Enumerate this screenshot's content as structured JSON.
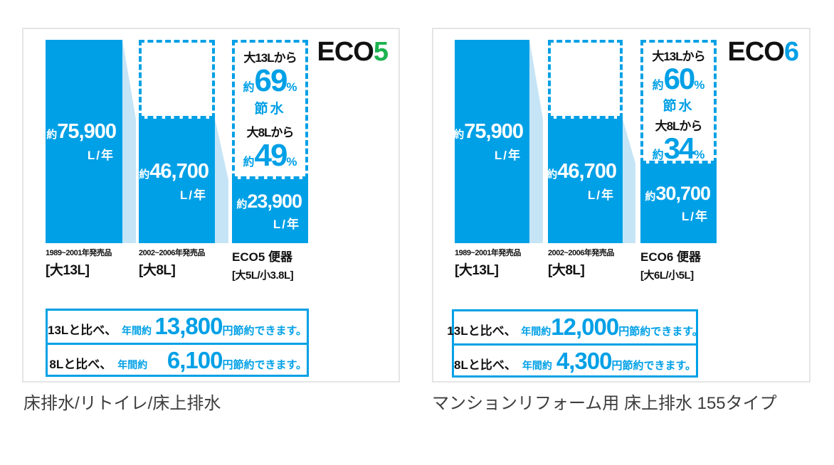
{
  "colors": {
    "bar_blue": "#00a0e6",
    "light_blue": "#c5e5f6",
    "eco5_digit_green": "#1cb24f",
    "eco6_digit_blue": "#00a0e6",
    "caption_gray": "#3d3d3d"
  },
  "panels": [
    {
      "logo": {
        "text": "ECO",
        "digit": "5",
        "digit_color": "#1cb24f"
      },
      "bars": [
        {
          "approx": "約",
          "value": "75,900",
          "unit": "L/年",
          "label1": "1989~2001年発売品",
          "label2": "[大13L]"
        },
        {
          "approx": "約",
          "value": "46,700",
          "unit": "L/年",
          "label1": "2002~2006年発売品",
          "label2": "[大8L]"
        },
        {
          "approx": "約",
          "value": "23,900",
          "unit": "L/年",
          "label1": "ECO5 便器",
          "label2": "[大5L/小3.8L]"
        }
      ],
      "savings": [
        {
          "from": "大13Lから",
          "approx": "約",
          "percent": "69",
          "mark": "%",
          "note": "節水"
        },
        {
          "from": "大8Lから",
          "approx": "約",
          "percent": "49",
          "mark": "%",
          "note": "節水"
        }
      ],
      "cost": [
        {
          "compare": "13Lと比べ、",
          "prefix": "年間約",
          "amount": "13,800",
          "suffix": "円節約できます。"
        },
        {
          "compare": "8Lと比べ、",
          "prefix": "年間約",
          "amount": "6,100",
          "suffix": "円節約できます。"
        }
      ],
      "caption": "床排水/リトイレ/床上排水"
    },
    {
      "logo": {
        "text": "ECO",
        "digit": "6",
        "digit_color": "#00a0e6"
      },
      "bars": [
        {
          "approx": "約",
          "value": "75,900",
          "unit": "L/年",
          "label1": "1989~2001年発売品",
          "label2": "[大13L]"
        },
        {
          "approx": "約",
          "value": "46,700",
          "unit": "L/年",
          "label1": "2002~2006年発売品",
          "label2": "[大8L]"
        },
        {
          "approx": "約",
          "value": "30,700",
          "unit": "L/年",
          "label1": "ECO6 便器",
          "label2": "[大6L/小5L]"
        }
      ],
      "savings": [
        {
          "from": "大13Lから",
          "approx": "約",
          "percent": "60",
          "mark": "%",
          "note": "節水"
        },
        {
          "from": "大8Lから",
          "approx": "約",
          "percent": "34",
          "mark": "%",
          "note": "節水"
        }
      ],
      "cost": [
        {
          "compare": "13Lと比べ、",
          "prefix": "年間約",
          "amount": "12,000",
          "suffix": "円節約できます。"
        },
        {
          "compare": "8Lと比べ、",
          "prefix": "年間約",
          "amount": "4,300",
          "suffix": "円節約できます。"
        }
      ],
      "caption": "マンションリフォーム用 床上排水 155タイプ"
    }
  ],
  "chart_data": [
    {
      "type": "bar",
      "title": "ECO5",
      "categories": [
        "1989~2001年発売品 [大13L]",
        "2002~2006年発売品 [大8L]",
        "ECO5便器 [大5L/小3.8L]"
      ],
      "values": [
        75900,
        46700,
        23900
      ],
      "ylabel": "L/年",
      "ylim": [
        0,
        75900
      ],
      "annotations": [
        "大13Lから約69%節水",
        "大8Lから約49%節水",
        "13Lと比べ、年間約13,800円節約できます。",
        "8Lと比べ、年間約6,100円節約できます。"
      ]
    },
    {
      "type": "bar",
      "title": "ECO6",
      "categories": [
        "1989~2001年発売品 [大13L]",
        "2002~2006年発売品 [大8L]",
        "ECO6便器 [大6L/小5L]"
      ],
      "values": [
        75900,
        46700,
        30700
      ],
      "ylabel": "L/年",
      "ylim": [
        0,
        75900
      ],
      "annotations": [
        "大13Lから約60%節水",
        "大8Lから約34%節水",
        "13Lと比べ、年間約12,000円節約できます。",
        "8Lと比べ、年間約4,300円節約できます。"
      ]
    }
  ]
}
